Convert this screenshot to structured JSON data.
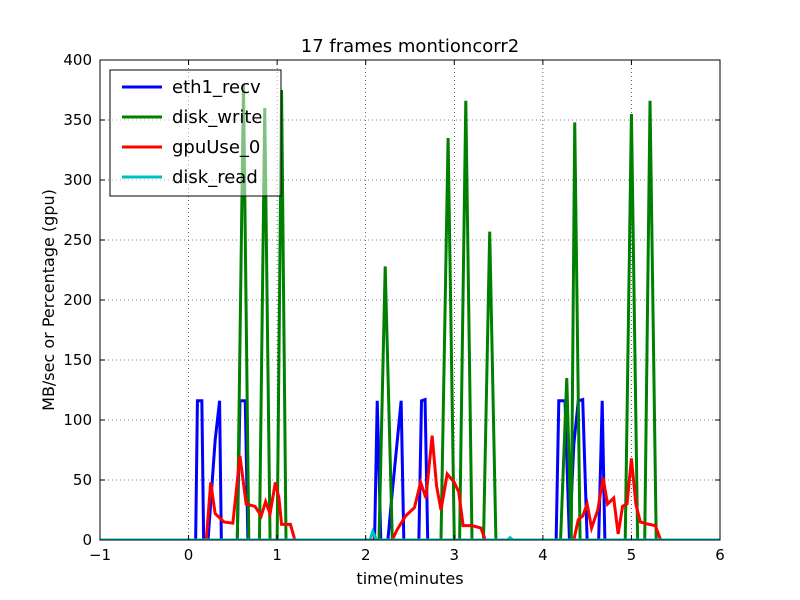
{
  "chart_data": {
    "type": "line",
    "title": "17 frames montioncorr2",
    "xlabel": "time(minutes",
    "ylabel": "MB/sec or Percentage (gpu)",
    "xlim": [
      -1,
      6
    ],
    "ylim": [
      0,
      400
    ],
    "xticks": [
      -1,
      0,
      1,
      2,
      3,
      4,
      5,
      6
    ],
    "yticks": [
      0,
      50,
      100,
      150,
      200,
      250,
      300,
      350,
      400
    ],
    "grid": true,
    "legend_position": "top-left",
    "series": [
      {
        "name": "eth1_recv",
        "color": "#0000ff",
        "points": [
          [
            -1,
            0
          ],
          [
            0.05,
            0
          ],
          [
            0.08,
            0
          ],
          [
            0.1,
            116
          ],
          [
            0.15,
            116
          ],
          [
            0.17,
            0
          ],
          [
            0.22,
            0
          ],
          [
            0.3,
            83
          ],
          [
            0.35,
            116
          ],
          [
            0.37,
            0
          ],
          [
            0.55,
            0
          ],
          [
            0.58,
            116
          ],
          [
            0.61,
            116
          ],
          [
            0.64,
            116
          ],
          [
            0.67,
            0
          ],
          [
            2.1,
            0
          ],
          [
            2.13,
            116
          ],
          [
            2.17,
            0
          ],
          [
            2.25,
            0
          ],
          [
            2.3,
            40
          ],
          [
            2.4,
            116
          ],
          [
            2.43,
            0
          ],
          [
            2.6,
            0
          ],
          [
            2.63,
            116
          ],
          [
            2.67,
            117
          ],
          [
            2.7,
            0
          ],
          [
            4.15,
            0
          ],
          [
            4.18,
            116
          ],
          [
            4.25,
            116
          ],
          [
            4.3,
            0
          ],
          [
            4.35,
            80
          ],
          [
            4.4,
            116
          ],
          [
            4.45,
            117
          ],
          [
            4.5,
            0
          ],
          [
            4.63,
            0
          ],
          [
            4.67,
            116
          ],
          [
            4.7,
            0
          ],
          [
            6,
            0
          ]
        ]
      },
      {
        "name": "disk_write",
        "color": "#008000",
        "points": [
          [
            -1,
            0
          ],
          [
            0.5,
            0
          ],
          [
            0.55,
            0
          ],
          [
            0.62,
            380
          ],
          [
            0.68,
            0
          ],
          [
            0.8,
            0
          ],
          [
            0.86,
            360
          ],
          [
            0.92,
            0
          ],
          [
            1.0,
            0
          ],
          [
            1.05,
            375
          ],
          [
            1.1,
            0
          ],
          [
            2.15,
            0
          ],
          [
            2.22,
            228
          ],
          [
            2.3,
            0
          ],
          [
            2.85,
            0
          ],
          [
            2.93,
            335
          ],
          [
            3.0,
            0
          ],
          [
            3.06,
            0
          ],
          [
            3.13,
            366
          ],
          [
            3.2,
            0
          ],
          [
            3.33,
            0
          ],
          [
            3.4,
            257
          ],
          [
            3.47,
            0
          ],
          [
            4.2,
            0
          ],
          [
            4.27,
            135
          ],
          [
            4.32,
            0
          ],
          [
            4.36,
            348
          ],
          [
            4.42,
            0
          ],
          [
            4.93,
            0
          ],
          [
            5.0,
            355
          ],
          [
            5.07,
            0
          ],
          [
            5.15,
            0
          ],
          [
            5.21,
            366
          ],
          [
            5.28,
            0
          ],
          [
            6,
            0
          ]
        ]
      },
      {
        "name": "gpuUse_0",
        "color": "#ff0000",
        "points": [
          [
            0.2,
            0
          ],
          [
            0.25,
            48
          ],
          [
            0.3,
            22
          ],
          [
            0.4,
            15
          ],
          [
            0.5,
            14
          ],
          [
            0.58,
            70
          ],
          [
            0.65,
            30
          ],
          [
            0.75,
            28
          ],
          [
            0.82,
            20
          ],
          [
            0.87,
            32
          ],
          [
            0.92,
            22
          ],
          [
            0.98,
            48
          ],
          [
            1.02,
            35
          ],
          [
            1.05,
            13
          ],
          [
            1.15,
            13
          ],
          [
            1.2,
            0
          ],
          [
            2.3,
            0
          ],
          [
            2.35,
            8
          ],
          [
            2.45,
            20
          ],
          [
            2.55,
            27
          ],
          [
            2.62,
            48
          ],
          [
            2.68,
            35
          ],
          [
            2.75,
            87
          ],
          [
            2.8,
            45
          ],
          [
            2.85,
            25
          ],
          [
            2.92,
            55
          ],
          [
            3.0,
            48
          ],
          [
            3.05,
            40
          ],
          [
            3.1,
            12
          ],
          [
            3.2,
            12
          ],
          [
            3.3,
            10
          ],
          [
            3.35,
            0
          ],
          [
            4.35,
            0
          ],
          [
            4.4,
            17
          ],
          [
            4.45,
            20
          ],
          [
            4.5,
            30
          ],
          [
            4.55,
            10
          ],
          [
            4.62,
            25
          ],
          [
            4.68,
            52
          ],
          [
            4.73,
            30
          ],
          [
            4.8,
            35
          ],
          [
            4.85,
            5
          ],
          [
            4.9,
            28
          ],
          [
            4.95,
            30
          ],
          [
            5.0,
            68
          ],
          [
            5.05,
            30
          ],
          [
            5.1,
            15
          ],
          [
            5.2,
            13
          ],
          [
            5.27,
            12
          ],
          [
            5.33,
            0
          ]
        ]
      },
      {
        "name": "disk_read",
        "color": "#00bfbf",
        "points": [
          [
            -1,
            0
          ],
          [
            2.05,
            0
          ],
          [
            2.08,
            7
          ],
          [
            2.12,
            0
          ],
          [
            3.6,
            0
          ],
          [
            3.63,
            2
          ],
          [
            3.66,
            0
          ],
          [
            6,
            0
          ]
        ]
      }
    ]
  }
}
